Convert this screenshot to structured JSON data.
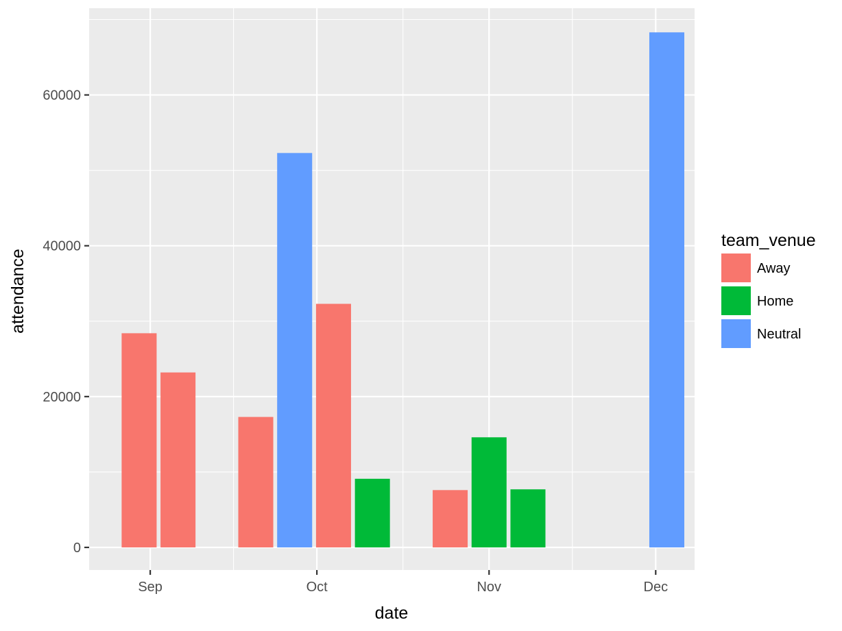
{
  "chart_data": {
    "type": "bar",
    "xlabel": "date",
    "ylabel": "attendance",
    "x_ticks": [
      {
        "label": "Sep",
        "date": "2016-09-01"
      },
      {
        "label": "Oct",
        "date": "2016-10-01"
      },
      {
        "label": "Nov",
        "date": "2016-11-01"
      },
      {
        "label": "Dec",
        "date": "2016-12-01"
      }
    ],
    "xlim": [
      "2016-08-21",
      "2016-12-08"
    ],
    "y_ticks": [
      0,
      20000,
      40000,
      60000
    ],
    "ylim": [
      -3000,
      71500
    ],
    "legend": {
      "title": "team_venue",
      "position": "right",
      "entries": [
        {
          "label": "Away",
          "color": "#F8766D"
        },
        {
          "label": "Home",
          "color": "#00BA38"
        },
        {
          "label": "Neutral",
          "color": "#619CFF"
        }
      ]
    },
    "bar_width_days": 6.3,
    "bars": [
      {
        "date": "2016-08-30",
        "venue": "Away",
        "attendance": 28400
      },
      {
        "date": "2016-09-06",
        "venue": "Away",
        "attendance": 23200
      },
      {
        "date": "2016-09-20",
        "venue": "Away",
        "attendance": 17300
      },
      {
        "date": "2016-09-27",
        "venue": "Neutral",
        "attendance": 52300
      },
      {
        "date": "2016-10-04",
        "venue": "Away",
        "attendance": 32300
      },
      {
        "date": "2016-10-11",
        "venue": "Home",
        "attendance": 9100
      },
      {
        "date": "2016-10-25",
        "venue": "Away",
        "attendance": 7600
      },
      {
        "date": "2016-11-01",
        "venue": "Home",
        "attendance": 14600
      },
      {
        "date": "2016-11-08",
        "venue": "Home",
        "attendance": 7700
      },
      {
        "date": "2016-12-03",
        "venue": "Neutral",
        "attendance": 68300
      }
    ],
    "grid": true,
    "panel_background": "#EBEBEB",
    "grid_color": "#FFFFFF"
  }
}
